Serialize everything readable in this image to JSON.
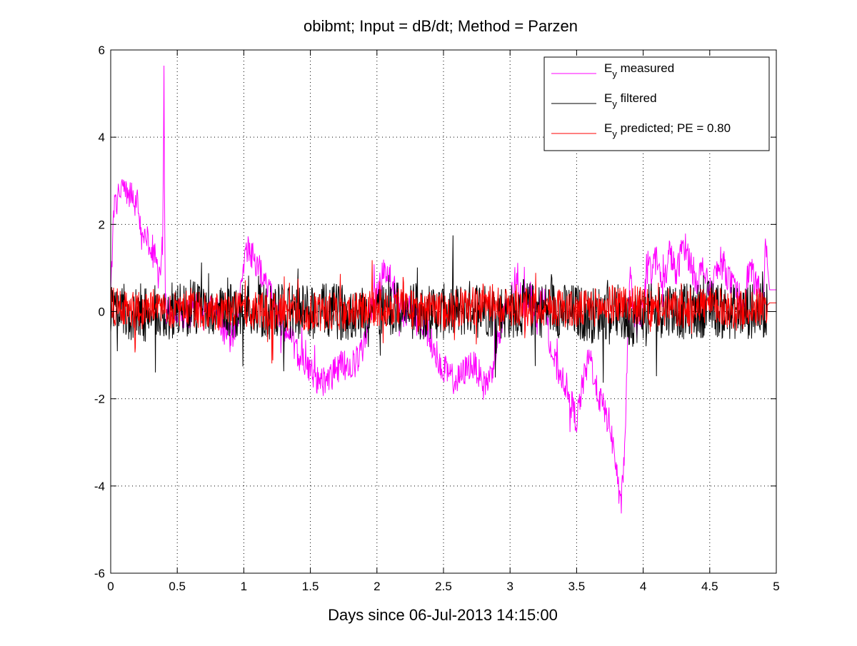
{
  "chart_data": {
    "type": "line",
    "title": "obibmt; Input = dB/dt; Method = Parzen",
    "xlabel": "Days since 06-Jul-2013 14:15:00",
    "ylabel": "",
    "xlim": [
      0,
      5
    ],
    "ylim": [
      -6,
      6
    ],
    "x_ticks": [
      0,
      0.5,
      1,
      1.5,
      2,
      2.5,
      3,
      3.5,
      4,
      4.5,
      5
    ],
    "x_tick_labels": [
      "0",
      "0.5",
      "1",
      "1.5",
      "2",
      "2.5",
      "3",
      "3.5",
      "4",
      "4.5",
      "5"
    ],
    "y_ticks": [
      -6,
      -4,
      -2,
      0,
      2,
      4,
      6
    ],
    "y_tick_labels": [
      "-6",
      "-4",
      "-2",
      "0",
      "2",
      "4",
      "6"
    ],
    "grid": true,
    "grid_style": "dotted",
    "legend_position": "top-right",
    "series": [
      {
        "name": "Ey measured",
        "legend_main": "E",
        "legend_sub": "y",
        "legend_rest": " measured",
        "color": "#ff00ff",
        "x": [
          0,
          0.02,
          0.05,
          0.08,
          0.1,
          0.13,
          0.16,
          0.2,
          0.23,
          0.25,
          0.27,
          0.3,
          0.33,
          0.36,
          0.39,
          0.4,
          0.41,
          0.42,
          0.44,
          0.47,
          0.5,
          0.55,
          0.6,
          0.65,
          0.7,
          0.75,
          0.8,
          0.85,
          0.9,
          0.95,
          1.0,
          1.03,
          1.06,
          1.1,
          1.15,
          1.2,
          1.25,
          1.3,
          1.35,
          1.4,
          1.45,
          1.5,
          1.55,
          1.6,
          1.65,
          1.7,
          1.75,
          1.8,
          1.85,
          1.9,
          1.95,
          2.0,
          2.05,
          2.1,
          2.15,
          2.2,
          2.25,
          2.3,
          2.35,
          2.4,
          2.45,
          2.5,
          2.55,
          2.6,
          2.65,
          2.7,
          2.75,
          2.8,
          2.85,
          2.9,
          2.95,
          3.0,
          3.05,
          3.1,
          3.15,
          3.2,
          3.25,
          3.3,
          3.35,
          3.4,
          3.45,
          3.5,
          3.55,
          3.6,
          3.65,
          3.7,
          3.75,
          3.8,
          3.83,
          3.86,
          3.9,
          3.95,
          4.0,
          4.05,
          4.1,
          4.15,
          4.2,
          4.25,
          4.3,
          4.35,
          4.4,
          4.45,
          4.5,
          4.55,
          4.6,
          4.65,
          4.7,
          4.75,
          4.8,
          4.85,
          4.9,
          4.92,
          4.95,
          5.0
        ],
        "y": [
          0.2,
          2.3,
          2.6,
          2.8,
          2.9,
          2.7,
          2.6,
          2.5,
          1.8,
          1.5,
          1.7,
          1.2,
          1.4,
          0.6,
          1.6,
          5.3,
          0.3,
          -0.2,
          0.1,
          -0.1,
          0.1,
          -0.2,
          0.0,
          0.1,
          -0.1,
          0.2,
          0.0,
          -0.4,
          -0.6,
          -0.2,
          0.9,
          1.5,
          1.3,
          1.1,
          0.7,
          0.4,
          0.0,
          -0.3,
          -0.6,
          -0.9,
          -1.2,
          -1.4,
          -1.6,
          -1.6,
          -1.5,
          -1.3,
          -1.2,
          -1.3,
          -1.1,
          -0.8,
          0.0,
          0.4,
          0.9,
          0.8,
          0.3,
          -0.1,
          0.0,
          -0.1,
          -0.3,
          -0.6,
          -1.0,
          -1.3,
          -1.5,
          -1.6,
          -1.4,
          -1.2,
          -1.3,
          -1.7,
          -1.5,
          -0.8,
          -0.2,
          0.3,
          0.6,
          0.2,
          0.5,
          -0.3,
          0.5,
          -0.8,
          -1.3,
          -1.5,
          -2.0,
          -2.5,
          -1.6,
          -1.0,
          -1.8,
          -2.2,
          -2.6,
          -3.6,
          -4.6,
          -3.2,
          0.8,
          -0.5,
          0.2,
          1.0,
          1.2,
          0.5,
          1.4,
          0.8,
          1.6,
          1.2,
          0.7,
          1.0,
          0.4,
          0.9,
          1.1,
          0.7,
          0.4,
          0.3,
          1.0,
          0.6,
          0.2,
          1.5,
          0.5,
          0.5
        ],
        "noise": 0.35
      },
      {
        "name": "Ey filtered",
        "legend_main": "E",
        "legend_sub": "y",
        "legend_rest": " filtered",
        "color": "#000000",
        "x": [
          0,
          0.05,
          0.1,
          0.15,
          0.2,
          0.25,
          0.3,
          0.35,
          0.4,
          0.45,
          0.5,
          0.6,
          0.7,
          0.8,
          0.9,
          1.0,
          1.1,
          1.2,
          1.3,
          1.4,
          1.5,
          1.6,
          1.7,
          1.8,
          1.9,
          2.0,
          2.1,
          2.2,
          2.3,
          2.4,
          2.5,
          2.6,
          2.7,
          2.8,
          2.9,
          3.0,
          3.1,
          3.2,
          3.3,
          3.4,
          3.5,
          3.6,
          3.7,
          3.8,
          3.9,
          4.0,
          4.1,
          4.2,
          4.3,
          4.4,
          4.5,
          4.6,
          4.7,
          4.8,
          4.9,
          4.92,
          4.95,
          5.0
        ],
        "y": [
          0.0,
          -0.1,
          0.1,
          -0.2,
          0.0,
          -0.1,
          0.0,
          0.1,
          -0.2,
          0.0,
          0.0,
          0.1,
          0.0,
          -0.1,
          0.0,
          0.1,
          0.0,
          0.0,
          0.0,
          0.0,
          0.0,
          0.0,
          0.0,
          0.0,
          0.0,
          0.0,
          0.1,
          0.0,
          0.0,
          0.0,
          0.0,
          0.0,
          0.1,
          0.1,
          0.0,
          0.0,
          0.1,
          0.0,
          0.1,
          0.0,
          0.0,
          -0.1,
          0.0,
          0.0,
          -0.2,
          0.0,
          0.0,
          0.1,
          0.0,
          0.0,
          0.1,
          0.0,
          0.0,
          0.0,
          0.0,
          0.0,
          0.0,
          0.0
        ],
        "noise": 0.65
      },
      {
        "name": "Ey predicted; PE = 0.80",
        "legend_main": "E",
        "legend_sub": "y",
        "legend_rest": " predicted; PE = 0.80",
        "color": "#ff0000",
        "x": [
          0,
          0.1,
          0.2,
          0.3,
          0.4,
          0.5,
          0.6,
          0.7,
          0.8,
          0.9,
          1.0,
          1.1,
          1.2,
          1.3,
          1.4,
          1.5,
          1.6,
          1.7,
          1.8,
          1.9,
          2.0,
          2.1,
          2.2,
          2.3,
          2.4,
          2.5,
          2.6,
          2.7,
          2.8,
          2.9,
          3.0,
          3.1,
          3.2,
          3.3,
          3.4,
          3.5,
          3.6,
          3.7,
          3.8,
          3.9,
          4.0,
          4.1,
          4.2,
          4.3,
          4.4,
          4.5,
          4.6,
          4.7,
          4.8,
          4.9,
          4.92,
          4.95,
          5.0
        ],
        "y": [
          0.1,
          0.1,
          0.0,
          0.1,
          0.0,
          0.1,
          0.1,
          0.0,
          0.0,
          0.1,
          0.1,
          0.0,
          0.0,
          0.0,
          0.0,
          0.0,
          0.0,
          0.0,
          0.0,
          0.0,
          0.1,
          0.1,
          0.1,
          0.0,
          0.0,
          0.0,
          0.1,
          0.1,
          0.2,
          0.2,
          0.1,
          0.1,
          0.1,
          0.1,
          0.1,
          0.0,
          0.1,
          0.1,
          0.2,
          0.2,
          0.1,
          0.0,
          0.1,
          0.0,
          0.2,
          0.1,
          0.1,
          0.0,
          0.1,
          0.1,
          0.1,
          0.2,
          0.2
        ],
        "noise": 0.45
      }
    ]
  }
}
